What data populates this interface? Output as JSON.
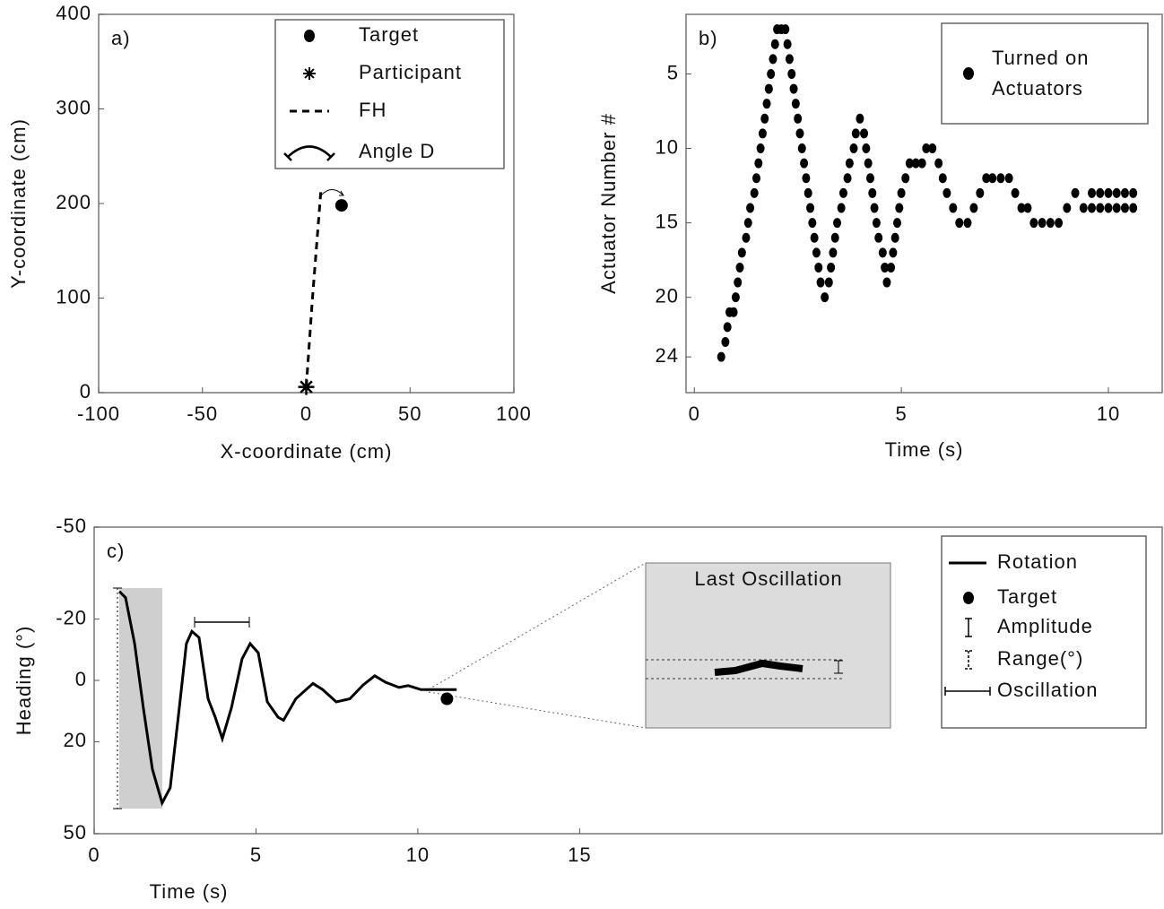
{
  "chart_data": [
    {
      "type": "line",
      "panel_label": "a)",
      "x_label": "X-coordinate (cm)",
      "y_label": "Y-coordinate (cm)",
      "xlim": [
        -100,
        100
      ],
      "ylim": [
        0,
        400
      ],
      "xticks": [
        -100,
        -50,
        0,
        50,
        100
      ],
      "yticks": [
        0,
        100,
        200,
        300,
        400
      ],
      "yinvert": false,
      "series": [
        {
          "name": "Target",
          "marker": "circle",
          "color": "#000000",
          "x": [
            17
          ],
          "values": [
            198
          ]
        },
        {
          "name": "Participant",
          "marker": "asterisk",
          "color": "#000000",
          "x": [
            0
          ],
          "values": [
            6
          ]
        },
        {
          "name": "FH",
          "marker": "none",
          "linestyle": "dashed",
          "color": "#000000",
          "x": [
            0,
            3,
            7
          ],
          "values": [
            6,
            100,
            212
          ]
        }
      ],
      "annotations": [
        "Angle D"
      ]
    },
    {
      "type": "scatter",
      "panel_label": "b)",
      "x_label": "Time (s)",
      "y_label": "Actuator Number #",
      "xlim": [
        -0.2,
        11.3
      ],
      "ylim": [
        1,
        26.4
      ],
      "xticks": [
        0,
        5,
        10
      ],
      "yticks": [
        5,
        10,
        15,
        20,
        24
      ],
      "yinvert": true,
      "series": [
        {
          "name": "Turned on Actuators",
          "marker": "circle",
          "color": "#000000",
          "x": [
            0.65,
            0.75,
            0.8,
            0.85,
            0.95,
            1.0,
            1.05,
            1.1,
            1.15,
            1.25,
            1.3,
            1.35,
            1.45,
            1.5,
            1.55,
            1.6,
            1.65,
            1.7,
            1.75,
            1.8,
            1.85,
            1.9,
            1.95,
            2.0,
            2.1,
            2.2,
            2.25,
            2.3,
            2.35,
            2.4,
            2.45,
            2.5,
            2.55,
            2.6,
            2.65,
            2.7,
            2.75,
            2.8,
            2.85,
            2.9,
            2.95,
            3.0,
            3.05,
            3.15,
            3.25,
            3.3,
            3.35,
            3.4,
            3.45,
            3.55,
            3.6,
            3.7,
            3.75,
            3.85,
            3.9,
            4.0,
            4.1,
            4.15,
            4.2,
            4.25,
            4.3,
            4.35,
            4.4,
            4.45,
            4.55,
            4.6,
            4.65,
            4.75,
            4.8,
            4.85,
            4.9,
            4.95,
            5.0,
            5.1,
            5.2,
            5.35,
            5.5,
            5.6,
            5.75,
            5.9,
            6.0,
            6.1,
            6.25,
            6.4,
            6.6,
            6.75,
            6.9,
            7.05,
            7.2,
            7.4,
            7.6,
            7.75,
            7.9,
            8.05,
            8.2,
            8.4,
            8.6,
            8.8,
            9.0,
            9.2,
            9.4,
            9.6,
            9.8,
            10.0,
            10.2,
            10.4,
            10.6,
            9.6,
            9.8,
            10.0,
            10.2,
            10.4,
            10.6
          ],
          "values": [
            24,
            23,
            22,
            21,
            21,
            20,
            19,
            18,
            17,
            16,
            15,
            14,
            13,
            12,
            11,
            10,
            9,
            8,
            7,
            6,
            5,
            4,
            3,
            2,
            2,
            2,
            3,
            4,
            5,
            6,
            7,
            8,
            9,
            10,
            11,
            12,
            13,
            14,
            15,
            16,
            17,
            18,
            19,
            20,
            19,
            18,
            17,
            16,
            15,
            14,
            13,
            12,
            11,
            10,
            9,
            8,
            9,
            10,
            11,
            12,
            13,
            14,
            15,
            16,
            17,
            18,
            19,
            18,
            17,
            16,
            15,
            14,
            13,
            12,
            11,
            11,
            11,
            10,
            10,
            11,
            12,
            13,
            14,
            15,
            15,
            14,
            13,
            12,
            12,
            12,
            12,
            13,
            14,
            14,
            15,
            15,
            15,
            15,
            14,
            13,
            14,
            13,
            13,
            13,
            13,
            13,
            13,
            14,
            14,
            14,
            14,
            14,
            14
          ]
        }
      ]
    },
    {
      "type": "line",
      "panel_label": "c)",
      "x_label": "Time (s)",
      "y_label": "Heading (°)",
      "xlim": [
        0,
        33
      ],
      "ylim": [
        -50,
        50
      ],
      "xticks": [
        0,
        5,
        10,
        15
      ],
      "yticks": [
        -50,
        -20,
        0,
        20,
        50
      ],
      "yinvert": true,
      "series": [
        {
          "name": "Rotation",
          "marker": "none",
          "linestyle": "solid",
          "color": "#000000",
          "x": [
            0.78,
            0.97,
            1.25,
            1.52,
            1.8,
            2.1,
            2.35,
            2.63,
            2.85,
            3.02,
            3.24,
            3.52,
            3.74,
            3.96,
            4.24,
            4.57,
            4.82,
            5.07,
            5.35,
            5.68,
            5.85,
            6.23,
            6.76,
            7.06,
            7.48,
            7.9,
            8.31,
            8.67,
            9.0,
            9.42,
            9.7,
            10.1,
            10.67,
            11.2
          ],
          "values": [
            -29,
            -27,
            -12,
            9,
            29,
            40,
            35,
            9,
            -12,
            -16,
            -14,
            6,
            12,
            19,
            9,
            -7,
            -12,
            -9,
            7,
            12,
            13,
            6,
            1,
            3,
            7,
            6,
            1.5,
            -1.5,
            0.6,
            2.3,
            1.7,
            3,
            3,
            3
          ]
        },
        {
          "name": "Target",
          "marker": "circle",
          "color": "#000000",
          "x": [
            10.9
          ],
          "values": [
            6
          ]
        }
      ],
      "annotations": [
        "Amplitude",
        "Range(°)",
        "Oscillation"
      ],
      "inset_title": "Last Oscillation"
    }
  ]
}
